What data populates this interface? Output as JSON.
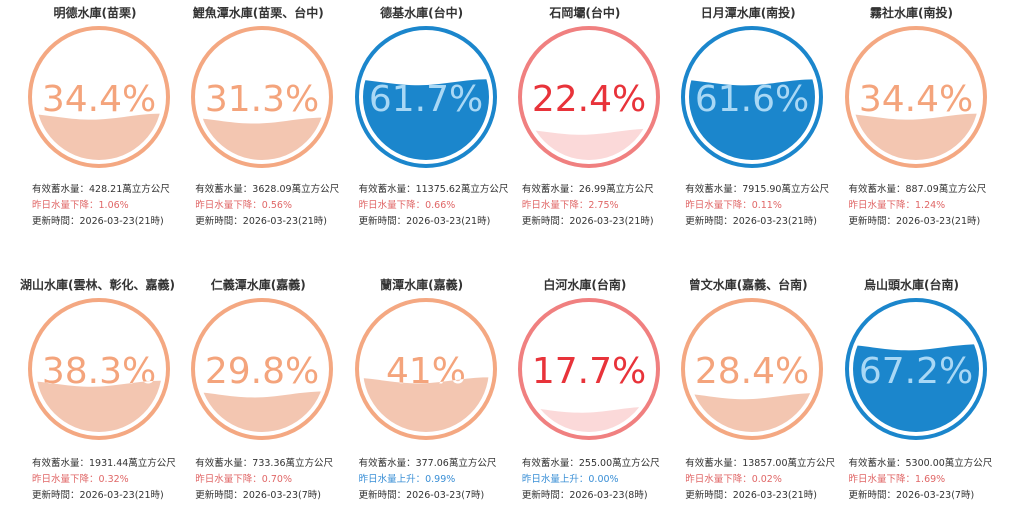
{
  "reservoirs": [
    {
      "name": "明德水庫(苗栗)",
      "percent": 34.4,
      "percent_label": "34.4%",
      "storage": "有效蓄水量：428.21萬立方公尺",
      "change": "昨日水量下降：1.06%",
      "trend": "down",
      "updated": "更新時間：2026-03-23(21時)",
      "theme": "orange"
    },
    {
      "name": "鯉魚潭水庫(苗栗、台中)",
      "percent": 31.3,
      "percent_label": "31.3%",
      "storage": "有效蓄水量：3628.09萬立方公尺",
      "change": "昨日水量下降：0.56%",
      "trend": "down",
      "updated": "更新時間：2026-03-23(21時)",
      "theme": "orange"
    },
    {
      "name": "德基水庫(台中)",
      "percent": 61.7,
      "percent_label": "61.7%",
      "storage": "有效蓄水量：11375.62萬立方公尺",
      "change": "昨日水量下降：0.66%",
      "trend": "down",
      "updated": "更新時間：2026-03-23(21時)",
      "theme": "blue"
    },
    {
      "name": "石岡壩(台中)",
      "percent": 22.4,
      "percent_label": "22.4%",
      "storage": "有效蓄水量：26.99萬立方公尺",
      "change": "昨日水量下降：2.75%",
      "trend": "down",
      "updated": "更新時間：2026-03-23(21時)",
      "theme": "red"
    },
    {
      "name": "日月潭水庫(南投)",
      "percent": 61.6,
      "percent_label": "61.6%",
      "storage": "有效蓄水量：7915.90萬立方公尺",
      "change": "昨日水量下降：0.11%",
      "trend": "down",
      "updated": "更新時間：2026-03-23(21時)",
      "theme": "blue"
    },
    {
      "name": "霧社水庫(南投)",
      "percent": 34.4,
      "percent_label": "34.4%",
      "storage": "有效蓄水量：887.09萬立方公尺",
      "change": "昨日水量下降：1.24%",
      "trend": "down",
      "updated": "更新時間：2026-03-23(21時)",
      "theme": "orange"
    },
    {
      "name": "湖山水庫(雲林、彰化、嘉義)",
      "percent": 38.3,
      "percent_label": "38.3%",
      "storage": "有效蓄水量：1931.44萬立方公尺",
      "change": "昨日水量下降：0.32%",
      "trend": "down",
      "updated": "更新時間：2026-03-23(21時)",
      "theme": "orange"
    },
    {
      "name": "仁義潭水庫(嘉義)",
      "percent": 29.8,
      "percent_label": "29.8%",
      "storage": "有效蓄水量：733.36萬立方公尺",
      "change": "昨日水量下降：0.70%",
      "trend": "down",
      "updated": "更新時間：2026-03-23(7時)",
      "theme": "orange"
    },
    {
      "name": "蘭潭水庫(嘉義)",
      "percent": 41,
      "percent_label": "41%",
      "storage": "有效蓄水量：377.06萬立方公尺",
      "change": "昨日水量上升：0.99%",
      "trend": "up",
      "updated": "更新時間：2026-03-23(7時)",
      "theme": "orange"
    },
    {
      "name": "白河水庫(台南)",
      "percent": 17.7,
      "percent_label": "17.7%",
      "storage": "有效蓄水量：255.00萬立方公尺",
      "change": "昨日水量上升：0.00%",
      "trend": "up",
      "updated": "更新時間：2026-03-23(8時)",
      "theme": "red"
    },
    {
      "name": "曾文水庫(嘉義、台南)",
      "percent": 28.4,
      "percent_label": "28.4%",
      "storage": "有效蓄水量：13857.00萬立方公尺",
      "change": "昨日水量下降：0.02%",
      "trend": "down",
      "updated": "更新時間：2026-03-23(21時)",
      "theme": "orange"
    },
    {
      "name": "烏山頭水庫(台南)",
      "percent": 67.2,
      "percent_label": "67.2%",
      "storage": "有效蓄水量：5300.00萬立方公尺",
      "change": "昨日水量下降：1.69%",
      "trend": "down",
      "updated": "更新時間：2026-03-23(7時)",
      "theme": "blue"
    }
  ],
  "themes": {
    "orange": {
      "ring": "#f4a882",
      "fill": "#f3c6b1",
      "text_above": "#f4a47c",
      "text_below": "#ffffff"
    },
    "blue": {
      "ring": "#1b86cc",
      "fill": "#1b86cc",
      "text_above": "#1b86cc",
      "text_below": "#a9d8f5",
      "bg": "#ffffff"
    },
    "red": {
      "ring": "#f08080",
      "fill": "#fbd9d9",
      "text_above": "#e8333a",
      "text_below": "#e8333a"
    }
  }
}
